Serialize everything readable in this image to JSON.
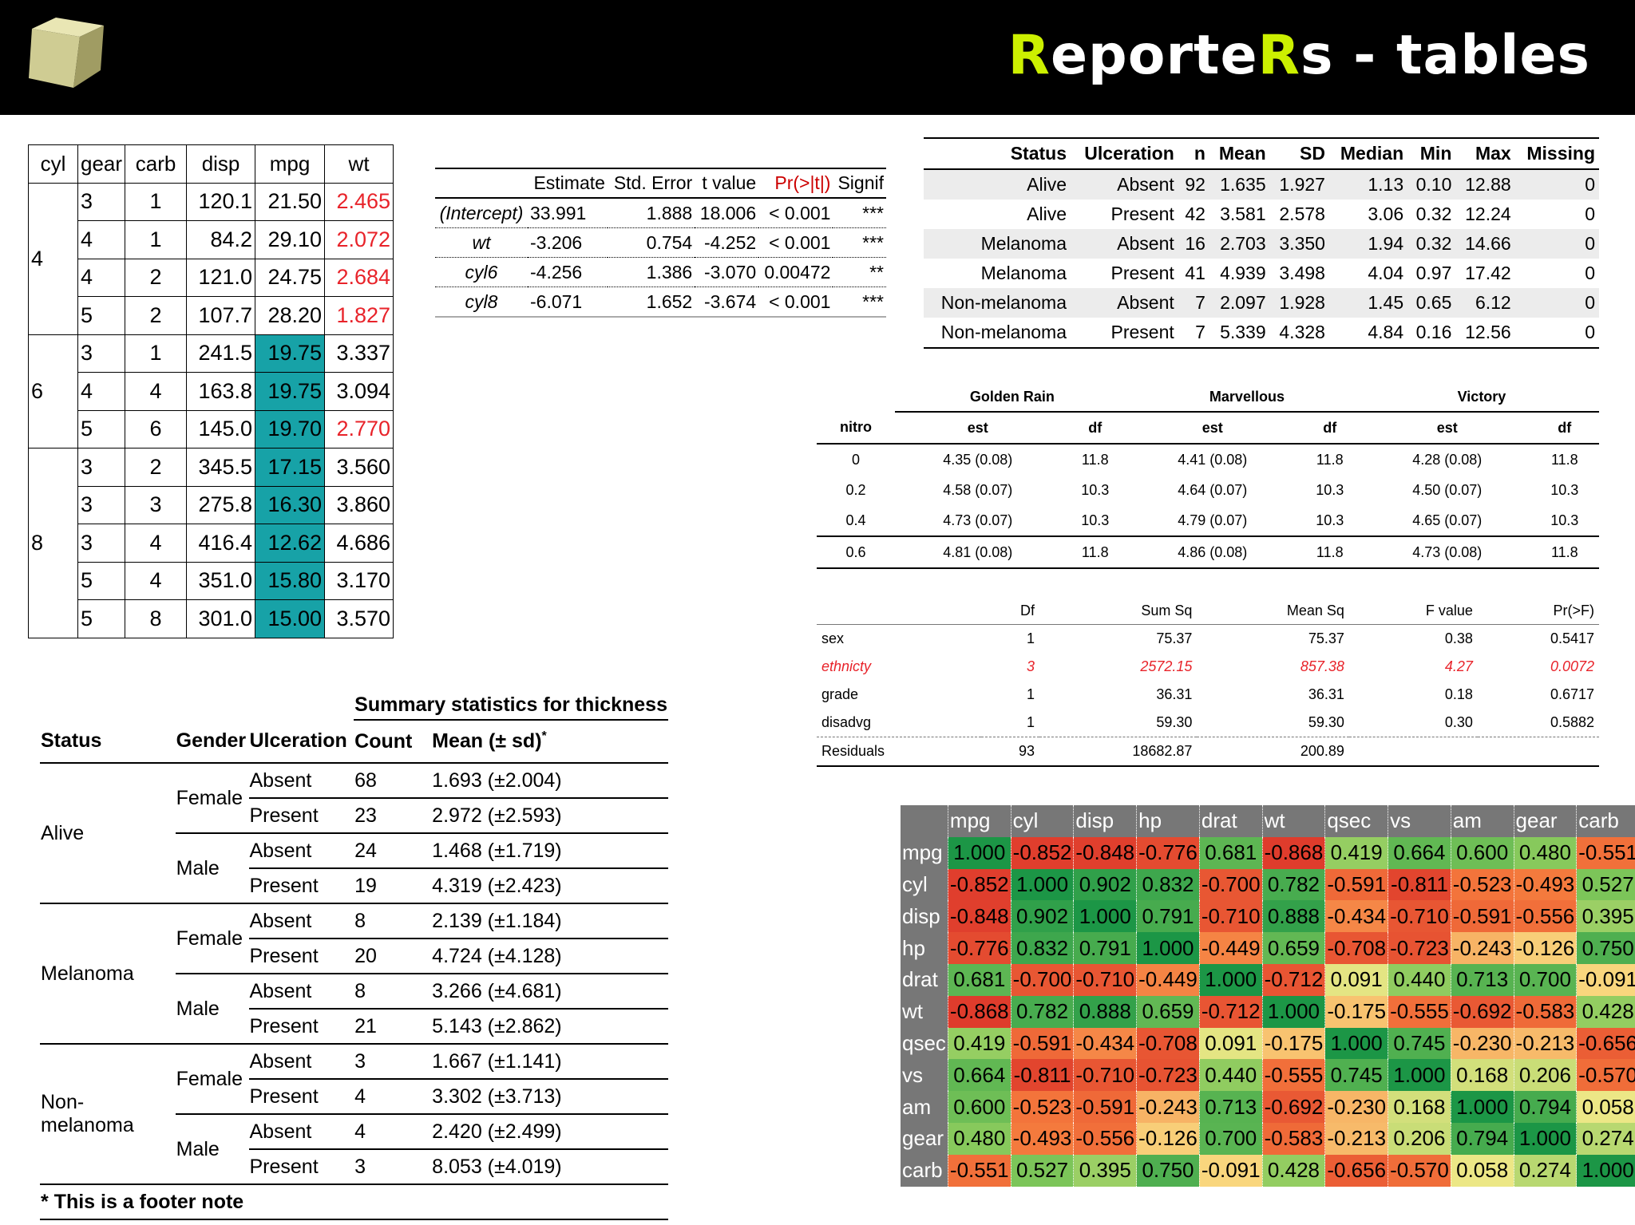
{
  "header": {
    "title_part1": "R",
    "title_part2": "eporte",
    "title_part3": "R",
    "title_part4": "s - tables"
  },
  "cars_table": {
    "headers": [
      "cyl",
      "gear",
      "carb",
      "disp",
      "mpg",
      "wt"
    ],
    "groups": [
      {
        "cyl": "4",
        "rows": [
          {
            "gear": "3",
            "carb": "1",
            "disp": "120.1",
            "mpg": "21.50",
            "wt": "2.465",
            "mpg_hl": false,
            "wt_red": true
          },
          {
            "gear": "4",
            "carb": "1",
            "disp": "84.2",
            "mpg": "29.10",
            "wt": "2.072",
            "mpg_hl": false,
            "wt_red": true
          },
          {
            "gear": "4",
            "carb": "2",
            "disp": "121.0",
            "mpg": "24.75",
            "wt": "2.684",
            "mpg_hl": false,
            "wt_red": true
          },
          {
            "gear": "5",
            "carb": "2",
            "disp": "107.7",
            "mpg": "28.20",
            "wt": "1.827",
            "mpg_hl": false,
            "wt_red": true
          }
        ]
      },
      {
        "cyl": "6",
        "rows": [
          {
            "gear": "3",
            "carb": "1",
            "disp": "241.5",
            "mpg": "19.75",
            "wt": "3.337",
            "mpg_hl": true,
            "wt_red": false
          },
          {
            "gear": "4",
            "carb": "4",
            "disp": "163.8",
            "mpg": "19.75",
            "wt": "3.094",
            "mpg_hl": true,
            "wt_red": false
          },
          {
            "gear": "5",
            "carb": "6",
            "disp": "145.0",
            "mpg": "19.70",
            "wt": "2.770",
            "mpg_hl": true,
            "wt_red": true
          }
        ]
      },
      {
        "cyl": "8",
        "rows": [
          {
            "gear": "3",
            "carb": "2",
            "disp": "345.5",
            "mpg": "17.15",
            "wt": "3.560",
            "mpg_hl": true,
            "wt_red": false
          },
          {
            "gear": "3",
            "carb": "3",
            "disp": "275.8",
            "mpg": "16.30",
            "wt": "3.860",
            "mpg_hl": true,
            "wt_red": false
          },
          {
            "gear": "3",
            "carb": "4",
            "disp": "416.4",
            "mpg": "12.62",
            "wt": "4.686",
            "mpg_hl": true,
            "wt_red": false
          },
          {
            "gear": "5",
            "carb": "4",
            "disp": "351.0",
            "mpg": "15.80",
            "wt": "3.170",
            "mpg_hl": true,
            "wt_red": false
          },
          {
            "gear": "5",
            "carb": "8",
            "disp": "301.0",
            "mpg": "15.00",
            "wt": "3.570",
            "mpg_hl": true,
            "wt_red": false
          }
        ]
      }
    ]
  },
  "reg_table": {
    "headers": [
      "",
      "Estimate",
      "Std. Error",
      "t value",
      "Pr(>|t|)",
      "Signif"
    ],
    "rows": [
      [
        "(Intercept)",
        "33.991",
        "1.888",
        "18.006",
        "< 0.001",
        "***"
      ],
      [
        "wt",
        "-3.206",
        "0.754",
        "-4.252",
        "< 0.001",
        "***"
      ],
      [
        "cyl6",
        "-4.256",
        "1.386",
        "-3.070",
        "0.00472",
        "**"
      ],
      [
        "cyl8",
        "-6.071",
        "1.652",
        "-3.674",
        "< 0.001",
        "***"
      ]
    ]
  },
  "status_table": {
    "headers": [
      "Status",
      "Ulceration",
      "n",
      "Mean",
      "SD",
      "Median",
      "Min",
      "Max",
      "Missing"
    ],
    "rows": [
      [
        "Alive",
        "Absent",
        "92",
        "1.635",
        "1.927",
        "1.13",
        "0.10",
        "12.88",
        "0"
      ],
      [
        "Alive",
        "Present",
        "42",
        "3.581",
        "2.578",
        "3.06",
        "0.32",
        "12.24",
        "0"
      ],
      [
        "Melanoma",
        "Absent",
        "16",
        "2.703",
        "3.350",
        "1.94",
        "0.32",
        "14.66",
        "0"
      ],
      [
        "Melanoma",
        "Present",
        "41",
        "4.939",
        "3.498",
        "4.04",
        "0.97",
        "17.42",
        "0"
      ],
      [
        "Non-melanoma",
        "Absent",
        "7",
        "2.097",
        "1.928",
        "1.45",
        "0.65",
        "6.12",
        "0"
      ],
      [
        "Non-melanoma",
        "Present",
        "7",
        "5.339",
        "4.328",
        "4.84",
        "0.16",
        "12.56",
        "0"
      ]
    ]
  },
  "oats_table": {
    "groups": [
      "Golden Rain",
      "Marvellous",
      "Victory"
    ],
    "subheaders": [
      "nitro",
      "est",
      "df",
      "est",
      "df",
      "est",
      "df"
    ],
    "rows": [
      [
        "0",
        "4.35 (0.08)",
        "11.8",
        "4.41 (0.08)",
        "11.8",
        "4.28 (0.08)",
        "11.8"
      ],
      [
        "0.2",
        "4.58 (0.07)",
        "10.3",
        "4.64 (0.07)",
        "10.3",
        "4.50 (0.07)",
        "10.3"
      ],
      [
        "0.4",
        "4.73 (0.07)",
        "10.3",
        "4.79 (0.07)",
        "10.3",
        "4.65 (0.07)",
        "10.3"
      ],
      [
        "0.6",
        "4.81 (0.08)",
        "11.8",
        "4.86 (0.08)",
        "11.8",
        "4.73 (0.08)",
        "11.8"
      ]
    ]
  },
  "anova_table": {
    "headers": [
      "",
      "Df",
      "Sum Sq",
      "Mean Sq",
      "F value",
      "Pr(>F)"
    ],
    "rows": [
      {
        "cells": [
          "sex",
          "1",
          "75.37",
          "75.37",
          "0.38",
          "0.5417"
        ],
        "red": false
      },
      {
        "cells": [
          "ethnicty",
          "3",
          "2572.15",
          "857.38",
          "4.27",
          "0.0072"
        ],
        "red": true
      },
      {
        "cells": [
          "grade",
          "1",
          "36.31",
          "36.31",
          "0.18",
          "0.6717"
        ],
        "red": false
      },
      {
        "cells": [
          "disadvg",
          "1",
          "59.30",
          "59.30",
          "0.30",
          "0.5882"
        ],
        "red": false
      },
      {
        "cells": [
          "Residuals",
          "93",
          "18682.87",
          "200.89",
          "",
          ""
        ],
        "red": false
      }
    ]
  },
  "summary_table": {
    "caption": "Summary statistics for thickness",
    "headers": [
      "Status",
      "Gender",
      "Ulceration",
      "Count",
      "Mean (± sd)",
      "*"
    ],
    "groups": [
      {
        "status": "Alive",
        "genders": [
          {
            "gender": "Female",
            "rows": [
              [
                "Absent",
                "68",
                "1.693 (±2.004)"
              ],
              [
                "Present",
                "23",
                "2.972 (±2.593)"
              ]
            ]
          },
          {
            "gender": "Male",
            "rows": [
              [
                "Absent",
                "24",
                "1.468 (±1.719)"
              ],
              [
                "Present",
                "19",
                "4.319 (±2.423)"
              ]
            ]
          }
        ]
      },
      {
        "status": "Melanoma",
        "genders": [
          {
            "gender": "Female",
            "rows": [
              [
                "Absent",
                "8",
                "2.139 (±1.184)"
              ],
              [
                "Present",
                "20",
                "4.724 (±4.128)"
              ]
            ]
          },
          {
            "gender": "Male",
            "rows": [
              [
                "Absent",
                "8",
                "3.266 (±4.681)"
              ],
              [
                "Present",
                "21",
                "5.143 (±2.862)"
              ]
            ]
          }
        ]
      },
      {
        "status": "Non-melanoma",
        "genders": [
          {
            "gender": "Female",
            "rows": [
              [
                "Absent",
                "3",
                "1.667 (±1.141)"
              ],
              [
                "Present",
                "4",
                "3.302 (±3.713)"
              ]
            ]
          },
          {
            "gender": "Male",
            "rows": [
              [
                "Absent",
                "4",
                "2.420 (±2.499)"
              ],
              [
                "Present",
                "3",
                "8.053 (±4.019)"
              ]
            ]
          }
        ]
      }
    ],
    "footer": "* This is a footer note"
  },
  "corr_table": {
    "labels": [
      "mpg",
      "cyl",
      "disp",
      "hp",
      "drat",
      "wt",
      "qsec",
      "vs",
      "am",
      "gear",
      "carb"
    ],
    "values": [
      [
        "1.000",
        "-0.852",
        "-0.848",
        "-0.776",
        "0.681",
        "-0.868",
        "0.419",
        "0.664",
        "0.600",
        "0.480",
        "-0.551"
      ],
      [
        "-0.852",
        "1.000",
        "0.902",
        "0.832",
        "-0.700",
        "0.782",
        "-0.591",
        "-0.811",
        "-0.523",
        "-0.493",
        "0.527"
      ],
      [
        "-0.848",
        "0.902",
        "1.000",
        "0.791",
        "-0.710",
        "0.888",
        "-0.434",
        "-0.710",
        "-0.591",
        "-0.556",
        "0.395"
      ],
      [
        "-0.776",
        "0.832",
        "0.791",
        "1.000",
        "-0.449",
        "0.659",
        "-0.708",
        "-0.723",
        "-0.243",
        "-0.126",
        "0.750"
      ],
      [
        "0.681",
        "-0.700",
        "-0.710",
        "-0.449",
        "1.000",
        "-0.712",
        "0.091",
        "0.440",
        "0.713",
        "0.700",
        "-0.091"
      ],
      [
        "-0.868",
        "0.782",
        "0.888",
        "0.659",
        "-0.712",
        "1.000",
        "-0.175",
        "-0.555",
        "-0.692",
        "-0.583",
        "0.428"
      ],
      [
        "0.419",
        "-0.591",
        "-0.434",
        "-0.708",
        "0.091",
        "-0.175",
        "1.000",
        "0.745",
        "-0.230",
        "-0.213",
        "-0.656"
      ],
      [
        "0.664",
        "-0.811",
        "-0.710",
        "-0.723",
        "0.440",
        "-0.555",
        "0.745",
        "1.000",
        "0.168",
        "0.206",
        "-0.570"
      ],
      [
        "0.600",
        "-0.523",
        "-0.591",
        "-0.243",
        "0.713",
        "-0.692",
        "-0.230",
        "0.168",
        "1.000",
        "0.794",
        "0.058"
      ],
      [
        "0.480",
        "-0.493",
        "-0.556",
        "-0.126",
        "0.700",
        "-0.583",
        "-0.213",
        "0.206",
        "0.794",
        "1.000",
        "0.274"
      ],
      [
        "-0.551",
        "0.527",
        "0.395",
        "0.750",
        "-0.091",
        "0.428",
        "-0.656",
        "-0.570",
        "0.058",
        "0.274",
        "1.000"
      ]
    ]
  },
  "colors": {
    "header_bg": "#000000",
    "title_accent": "#ccf000",
    "highlight_teal": "#17a2a7",
    "red_text": "#e8232a",
    "heat_header": "#777777"
  }
}
